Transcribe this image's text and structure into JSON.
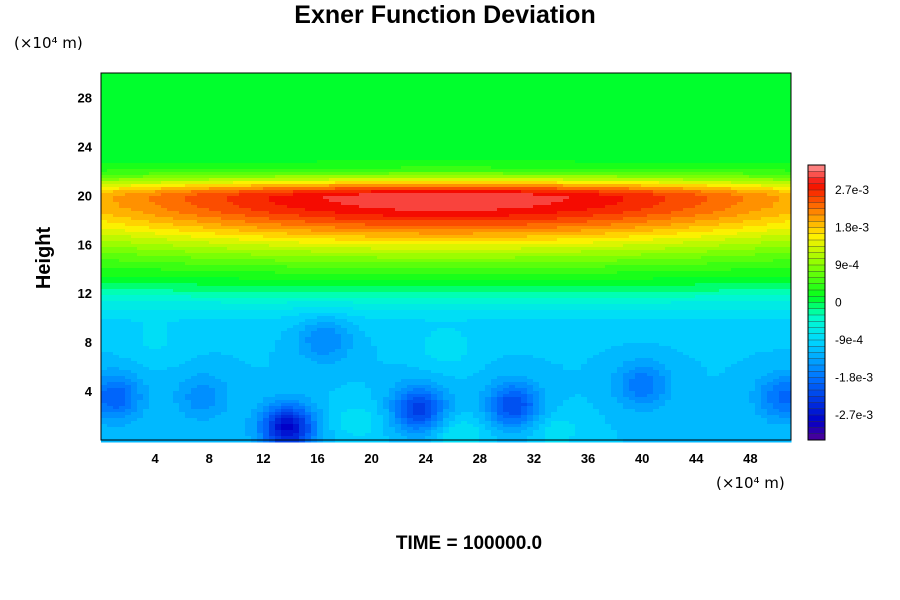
{
  "chart_data": {
    "type": "heatmap",
    "title": "Exner Function Deviation",
    "ylabel": "Height",
    "y_unit_label": "(×10⁴ m)",
    "x_unit_label": "(×10⁴ m)",
    "footer": "TIME = 100000.0",
    "x_ticks": [
      4,
      8,
      12,
      16,
      20,
      24,
      28,
      32,
      36,
      40,
      44,
      48
    ],
    "y_ticks": [
      4,
      8,
      12,
      16,
      20,
      24,
      28
    ],
    "xlim": [
      0,
      51
    ],
    "ylim": [
      0,
      30
    ],
    "colorbar": {
      "vmin": -0.0033,
      "vmax": 0.0033,
      "ticks": [
        {
          "value": 0.0027,
          "label": "2.7e-3"
        },
        {
          "value": 0.0018,
          "label": "1.8e-3"
        },
        {
          "value": 0.0009,
          "label": "9e-4"
        },
        {
          "value": 0,
          "label": "0"
        },
        {
          "value": -0.0009,
          "label": "-9e-4"
        },
        {
          "value": -0.0018,
          "label": "-1.8e-3"
        },
        {
          "value": -0.0027,
          "label": "-2.7e-3"
        }
      ]
    },
    "features": {
      "band_center_height": 19.8,
      "band_peak_value": 0.003,
      "lower_background_value": -0.0011,
      "upper_background_value": 0.0001,
      "low_centers": [
        {
          "x": 1,
          "y": 3.5,
          "value": -0.002
        },
        {
          "x": 7.5,
          "y": 3.5,
          "value": -0.0016
        },
        {
          "x": 13.8,
          "y": 1.0,
          "value": -0.0028
        },
        {
          "x": 16.5,
          "y": 8.3,
          "value": -0.0017
        },
        {
          "x": 23.5,
          "y": 2.5,
          "value": -0.0023
        },
        {
          "x": 30.5,
          "y": 2.8,
          "value": -0.0022
        },
        {
          "x": 40,
          "y": 4.5,
          "value": -0.0018
        },
        {
          "x": 50.5,
          "y": 3.5,
          "value": -0.0019
        }
      ],
      "high_centers": [
        {
          "x": 25.5,
          "y": 7.5,
          "value": -0.0008
        },
        {
          "x": 26.5,
          "y": 0.5,
          "value": -0.0007
        },
        {
          "x": 19,
          "y": 1.5,
          "value": -0.0008
        },
        {
          "x": 33.5,
          "y": 0.8,
          "value": -0.0008
        },
        {
          "x": 4,
          "y": 8,
          "value": -0.0009
        }
      ]
    }
  }
}
